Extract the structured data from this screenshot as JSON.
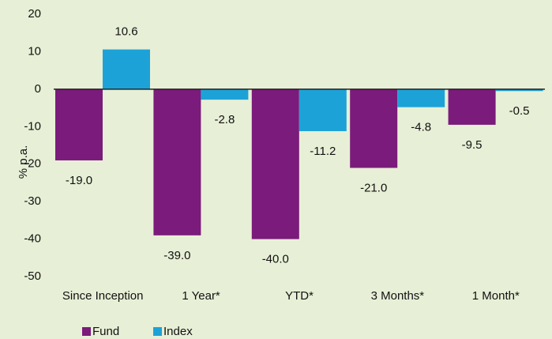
{
  "chart_data": {
    "type": "bar",
    "y_label": "% p.a.",
    "categories": [
      "Since Inception",
      "1 Year*",
      "YTD*",
      "3 Months*",
      "1 Month*"
    ],
    "series": [
      {
        "name": "Fund",
        "color": "#7b1b7b",
        "values": [
          -19.0,
          -39.0,
          -40.0,
          -21.0,
          -9.5
        ],
        "value_labels": [
          "-19.0",
          "-39.0",
          "-40.0",
          "-21.0",
          "-9.5"
        ]
      },
      {
        "name": "Index",
        "color": "#1da2d8",
        "values": [
          10.6,
          -2.8,
          -11.2,
          -4.8,
          -0.5
        ],
        "value_labels": [
          "10.6",
          "-2.8",
          "-11.2",
          "-4.8",
          "-0.5"
        ]
      }
    ],
    "ylim": [
      -50,
      20
    ],
    "yticks": [
      -50,
      -40,
      -30,
      -20,
      -10,
      0,
      10,
      20
    ],
    "grid": false,
    "legend": "bottom"
  }
}
